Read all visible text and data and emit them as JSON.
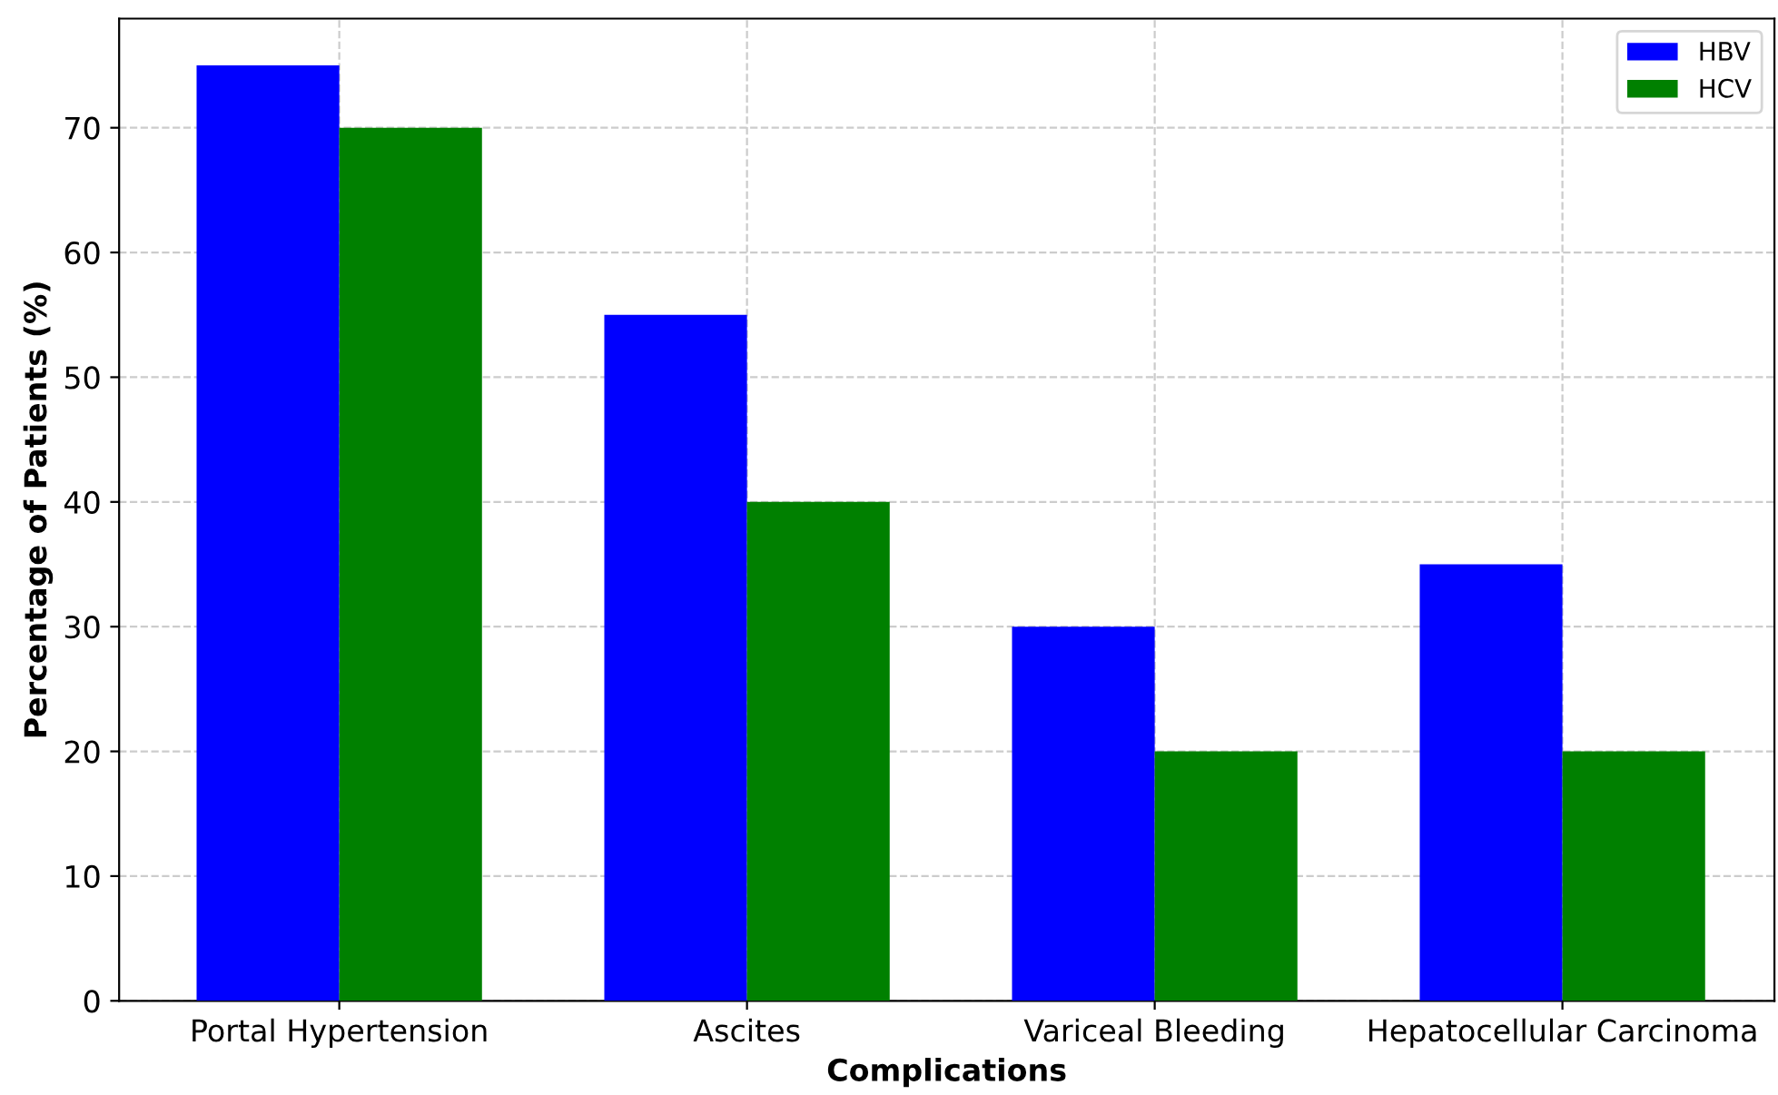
{
  "chart_data": {
    "type": "bar",
    "xlabel": "Complications",
    "ylabel": "Percentage of Patients (%)",
    "categories": [
      "Portal Hypertension",
      "Ascites",
      "Variceal Bleeding",
      "Hepatocellular Carcinoma"
    ],
    "series": [
      {
        "name": "HBV",
        "color": "#0000ff",
        "values": [
          75,
          55,
          30,
          35
        ]
      },
      {
        "name": "HCV",
        "color": "#008000",
        "values": [
          70,
          40,
          20,
          20
        ]
      }
    ],
    "ylim": [
      0,
      78.75
    ],
    "yticks": [
      0,
      10,
      20,
      30,
      40,
      50,
      60,
      70
    ],
    "grid": true,
    "legend": "top right"
  }
}
